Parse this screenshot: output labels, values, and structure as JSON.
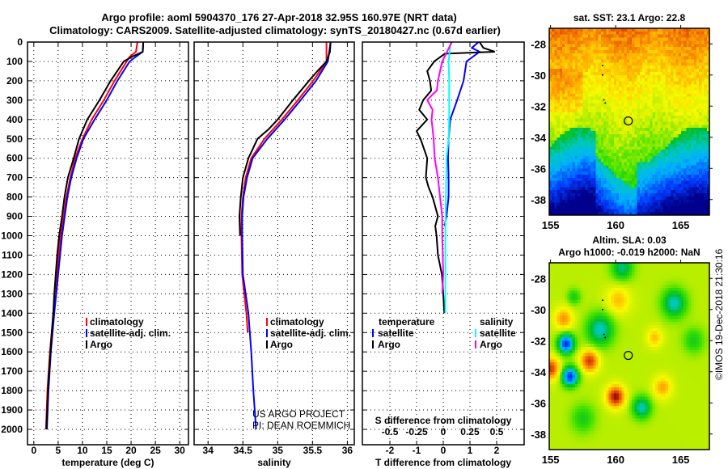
{
  "title": {
    "line1": "Argo profile: aoml 5904370_176 27-Apr-2018 32.95S 160.97E (NRT data)",
    "line2": "Climatology: CARS2009. Satellite-adjusted climatology: synTS_20180427.nc (0.67d earlier)"
  },
  "annotation": {
    "line1": "US ARGO PROJECT",
    "line2": "PI: DEAN ROEMMICH"
  },
  "footer": "©IMOS 19-Dec-2018 21:30:16",
  "chart_data": [
    {
      "type": "line",
      "id": "temperature",
      "xlabel": "temperature (deg C)",
      "ylabel": "depth",
      "xlim": [
        -1.3,
        31.8
      ],
      "ylim": [
        0,
        2080
      ],
      "xticks": [
        0,
        5,
        10,
        15,
        20,
        25,
        30
      ],
      "yticks": [
        0,
        100,
        200,
        300,
        400,
        500,
        600,
        700,
        800,
        900,
        1000,
        1100,
        1200,
        1300,
        1400,
        1500,
        1600,
        1700,
        1800,
        1900,
        2000
      ],
      "grid": true,
      "legend": [
        {
          "label": "climatology",
          "color": "#ff0000"
        },
        {
          "label": "satellite-adj. clim.",
          "color": "#0000ff"
        },
        {
          "label": "Argo",
          "color": "#000000"
        }
      ],
      "series": [
        {
          "name": "climatology",
          "color": "#ff0000",
          "depth": [
            0,
            50,
            75,
            100,
            200,
            300,
            400,
            500,
            600,
            700,
            800,
            1000,
            1200,
            1400,
            1600,
            1800,
            2000
          ],
          "values": [
            21.3,
            21.0,
            19.7,
            19.1,
            16.6,
            14.4,
            11.9,
            10.0,
            8.5,
            7.5,
            6.7,
            5.5,
            4.7,
            4.0,
            3.3,
            2.8,
            2.5
          ]
        },
        {
          "name": "satellite-adj. clim.",
          "color": "#0000ff",
          "depth": [
            0,
            50,
            75,
            100,
            200,
            300,
            400,
            500,
            600,
            700,
            800,
            1000,
            1200,
            1400,
            1600,
            1800,
            2000
          ],
          "values": [
            22.5,
            22.4,
            21.0,
            19.7,
            17.2,
            15.0,
            12.5,
            10.2,
            8.8,
            7.7,
            6.9,
            5.8,
            5.0,
            4.2,
            3.5,
            3.0,
            2.7
          ]
        },
        {
          "name": "Argo",
          "color": "#000000",
          "depth": [
            0,
            50,
            75,
            100,
            200,
            300,
            400,
            500,
            600,
            700,
            800,
            900,
            1000,
            1100,
            1200,
            1300,
            1400,
            1600,
            1800,
            2000
          ],
          "values": [
            22.5,
            22.4,
            20.2,
            18.5,
            15.8,
            13.5,
            11.0,
            9.3,
            8.2,
            7.0,
            6.3,
            5.8,
            5.2,
            4.8,
            4.5,
            4.2,
            4.0,
            3.4,
            2.9,
            2.6
          ]
        }
      ]
    },
    {
      "type": "line",
      "id": "salinity",
      "xlabel": "salinity",
      "ylabel": "depth",
      "xlim": [
        33.8,
        36.1
      ],
      "ylim": [
        0,
        2080
      ],
      "xticks": [
        34,
        34.5,
        35,
        35.5,
        36
      ],
      "yticks": [
        0,
        100,
        200,
        300,
        400,
        500,
        600,
        700,
        800,
        900,
        1000,
        1100,
        1200,
        1300,
        1400,
        1500,
        1600,
        1700,
        1800,
        1900,
        2000
      ],
      "grid": true,
      "legend": [
        {
          "label": "climatology",
          "color": "#ff0000"
        },
        {
          "label": "satellite-adj. clim.",
          "color": "#0000ff"
        },
        {
          "label": "Argo",
          "color": "#000000"
        }
      ],
      "series": [
        {
          "name": "climatology",
          "color": "#ff0000",
          "depth": [
            0,
            100,
            200,
            300,
            400,
            500,
            600,
            700,
            800,
            900,
            1000,
            1200,
            1400,
            1500
          ],
          "values": [
            35.7,
            35.7,
            35.51,
            35.29,
            35.06,
            34.81,
            34.62,
            34.54,
            34.5,
            34.48,
            34.48,
            34.49,
            34.55,
            34.57
          ]
        },
        {
          "name": "satellite-adj. clim.",
          "color": "#0000ff",
          "depth": [
            0,
            100,
            200,
            300,
            400,
            500,
            600,
            700,
            800,
            900,
            1000,
            1200,
            1400,
            1600,
            1800,
            2000
          ],
          "values": [
            35.76,
            35.72,
            35.55,
            35.33,
            35.1,
            34.85,
            34.64,
            34.56,
            34.51,
            34.49,
            34.49,
            34.5,
            34.58,
            34.62,
            34.65,
            34.69
          ]
        },
        {
          "name": "Argo",
          "color": "#000000",
          "depth": [
            0,
            50,
            100,
            150,
            200,
            300,
            400,
            450,
            500,
            600,
            700,
            800,
            900,
            1000
          ],
          "values": [
            35.76,
            35.75,
            35.7,
            35.57,
            35.45,
            35.22,
            35.0,
            34.87,
            34.71,
            34.58,
            34.5,
            34.47,
            34.45,
            34.46
          ]
        }
      ]
    },
    {
      "type": "line",
      "id": "differences",
      "xlabel": "T difference from climatology",
      "x2label": "S difference from climatology",
      "xlim": [
        -3.03,
        3.03
      ],
      "x2lim": [
        -0.758,
        0.758
      ],
      "ylim": [
        0,
        2080
      ],
      "xticks": [
        -2,
        -1,
        0,
        1,
        2
      ],
      "x2ticks": [
        -0.5,
        -0.25,
        0,
        0.25,
        0.5
      ],
      "yticks": [
        0,
        100,
        200,
        300,
        400,
        500,
        600,
        700,
        800,
        900,
        1000,
        1100,
        1200,
        1300,
        1400,
        1500,
        1600,
        1700,
        1800,
        1900,
        2000
      ],
      "grid": true,
      "legend": {
        "temperature_header": "temperature",
        "salinity_header": "salinity",
        "temperature": [
          {
            "label": "satellite",
            "color": "#0000ff"
          },
          {
            "label": "Argo",
            "color": "#000000"
          }
        ],
        "salinity": [
          {
            "label": "satellite",
            "color": "#00ffff"
          },
          {
            "label": "Argo",
            "color": "#ff00ff"
          }
        ]
      },
      "series": [
        {
          "name": "temperature satellite",
          "axis": "T",
          "color": "#0000ff",
          "depth": [
            0,
            30,
            50,
            100,
            200,
            300,
            400,
            500,
            600,
            700,
            800,
            900,
            950
          ],
          "values": [
            1.32,
            1.07,
            1.36,
            0.87,
            0.76,
            0.52,
            0.26,
            0.2,
            0.18,
            0.2,
            0.2,
            0.12,
            0.05
          ]
        },
        {
          "name": "temperature Argo",
          "axis": "T",
          "color": "#000000",
          "depth": [
            0,
            30,
            50,
            60,
            100,
            150,
            200,
            250,
            300,
            350,
            400,
            460,
            500,
            600,
            700,
            750,
            800,
            900,
            950,
            1000,
            1100,
            1200,
            1300,
            1400
          ],
          "values": [
            1.36,
            1.5,
            1.93,
            0.06,
            -0.34,
            -0.6,
            -0.5,
            -0.45,
            -0.75,
            -0.9,
            -0.6,
            -1.0,
            -0.85,
            -0.6,
            -0.65,
            -0.55,
            -0.4,
            -0.2,
            -0.3,
            -0.25,
            -0.2,
            -0.05,
            0.0,
            0.04
          ]
        },
        {
          "name": "salinity satellite",
          "axis": "S",
          "color": "#00ffff",
          "depth": [
            0,
            100,
            200,
            400,
            500,
            600,
            800,
            1000,
            1200,
            1400
          ],
          "values": [
            0.07,
            0.05,
            0.055,
            0.055,
            0.05,
            0.03,
            0.025,
            0.02,
            0.02,
            0.02
          ]
        },
        {
          "name": "salinity Argo",
          "axis": "S",
          "color": "#ff00ff",
          "depth": [
            0,
            100,
            200,
            250,
            270,
            300,
            350,
            400,
            500,
            600,
            700,
            800,
            900,
            1000,
            1200,
            1300
          ],
          "values": [
            0.08,
            -0.01,
            -0.05,
            -0.06,
            -0.1,
            -0.15,
            -0.1,
            -0.11,
            -0.09,
            -0.08,
            -0.05,
            -0.03,
            -0.01,
            -0.01,
            0.0,
            -0.01
          ]
        }
      ]
    },
    {
      "type": "heatmap",
      "id": "sst-map",
      "title": "sat. SST: 23.1 Argo: 22.8",
      "xlim": [
        154.9,
        167.2
      ],
      "ylim": [
        -39,
        -27
      ],
      "xticks": [
        155,
        160,
        165
      ],
      "yticks": [
        -28,
        -30,
        -32,
        -34,
        -36,
        -38
      ],
      "marker": {
        "lon": 160.97,
        "lat": -32.95
      }
    },
    {
      "type": "heatmap",
      "id": "sla-map",
      "title": "Altim. SLA: 0.03",
      "subtitle": "Argo h1000: -0.019 h2000: NaN",
      "xlim": [
        154.9,
        167.2
      ],
      "ylim": [
        -39,
        -27
      ],
      "xticks": [
        155,
        160,
        165
      ],
      "yticks": [
        -28,
        -30,
        -32,
        -34,
        -36,
        -38
      ],
      "marker": {
        "lon": 160.97,
        "lat": -32.95
      }
    }
  ]
}
